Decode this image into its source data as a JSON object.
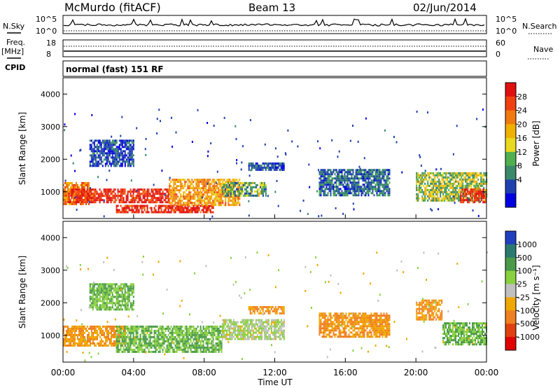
{
  "header": {
    "station": "McMurdo (fitACF)",
    "beam": "Beam 13",
    "date": "02/Jun/2014"
  },
  "top_panels": {
    "nsky_label": "N.Sky",
    "nsky_ticks": [
      "10^5",
      "10^0"
    ],
    "nsearch_label": "N.Search",
    "nsearch_ticks": [
      "10^5",
      "10^0"
    ],
    "freq_label": "Freq.",
    "freq_unit": "[MHz]",
    "freq_ticks": [
      "18",
      "8"
    ],
    "nave_label": "Nave",
    "nave_ticks": [
      "60",
      "0"
    ],
    "cpid_label": "CPID",
    "cpid_text": "normal (fast) 151 RF"
  },
  "axes": {
    "ylabel": "Slant Range [km]",
    "xlabel": "Time UT",
    "y_ticks": [
      "1000",
      "2000",
      "3000",
      "4000"
    ],
    "x_ticks": [
      "00:00",
      "04:00",
      "08:00",
      "12:00",
      "16:00",
      "20:00",
      "00:00"
    ]
  },
  "power_colorbar": {
    "label": "Power [dB]",
    "ticks": [
      "28",
      "24",
      "20",
      "16",
      "12",
      "8",
      "4"
    ],
    "colors": [
      "#e01010",
      "#f04010",
      "#f07a10",
      "#f0b000",
      "#e8d820",
      "#50b050",
      "#3a8a6a",
      "#2040b0",
      "#0000e0"
    ]
  },
  "velocity_colorbar": {
    "label": "Velocity [m s⁻¹]",
    "ticks": [
      "1000",
      "500",
      "100",
      "25",
      "-25",
      "-100",
      "-500",
      "-1000"
    ],
    "colors": [
      "#2040c0",
      "#2a7a70",
      "#4a9a4a",
      "#8ad040",
      "#c0c0c0",
      "#f0a800",
      "#f08020",
      "#e04010",
      "#e00000"
    ]
  },
  "chart_data": [
    {
      "type": "heatmap",
      "title": "Power",
      "xlabel": "Time UT",
      "ylabel": "Slant Range [km]",
      "xlim": [
        "00:00",
        "24:00"
      ],
      "ylim": [
        180,
        4500
      ],
      "colorbar": "Power [dB]",
      "regions": [
        {
          "t": [
            0.0,
            1.5
          ],
          "range": [
            600,
            1300
          ],
          "value_db": 22
        },
        {
          "t": [
            0.3,
            6.0
          ],
          "range": [
            650,
            1100
          ],
          "value_db": 28
        },
        {
          "t": [
            3.0,
            8.5
          ],
          "range": [
            400,
            600
          ],
          "value_db": 28
        },
        {
          "t": [
            6.0,
            10.0
          ],
          "range": [
            600,
            1400
          ],
          "value_db": 20
        },
        {
          "t": [
            9.0,
            11.5
          ],
          "range": [
            900,
            1300
          ],
          "value_db": 12
        },
        {
          "t": [
            10.5,
            12.5
          ],
          "range": [
            1650,
            1900
          ],
          "value_db": 6
        },
        {
          "t": [
            1.5,
            4.0
          ],
          "range": [
            1800,
            2600
          ],
          "value_db": 6
        },
        {
          "t": [
            14.5,
            18.5
          ],
          "range": [
            900,
            1700
          ],
          "value_db": 8
        },
        {
          "t": [
            20.0,
            24.0
          ],
          "range": [
            700,
            1600
          ],
          "value_db": 14
        },
        {
          "t": [
            22.5,
            24.0
          ],
          "range": [
            650,
            1100
          ],
          "value_db": 28
        }
      ]
    },
    {
      "type": "heatmap",
      "title": "Velocity",
      "xlabel": "Time UT",
      "ylabel": "Slant Range [km]",
      "xlim": [
        "00:00",
        "24:00"
      ],
      "ylim": [
        180,
        4500
      ],
      "colorbar": "Velocity [m s-1]",
      "regions": [
        {
          "t": [
            0.0,
            3.5
          ],
          "range": [
            700,
            1300
          ],
          "value_ms": -100
        },
        {
          "t": [
            3.0,
            9.0
          ],
          "range": [
            500,
            1300
          ],
          "value_ms": 100
        },
        {
          "t": [
            9.0,
            12.5
          ],
          "range": [
            900,
            1500
          ],
          "value_ms": 25
        },
        {
          "t": [
            10.5,
            12.5
          ],
          "range": [
            1650,
            1900
          ],
          "value_ms": -100
        },
        {
          "t": [
            14.5,
            18.5
          ],
          "range": [
            950,
            1700
          ],
          "value_ms": -100
        },
        {
          "t": [
            20.0,
            21.5
          ],
          "range": [
            1500,
            2100
          ],
          "value_ms": -100
        },
        {
          "t": [
            21.5,
            24.0
          ],
          "range": [
            700,
            1400
          ],
          "value_ms": 100
        },
        {
          "t": [
            1.5,
            4.0
          ],
          "range": [
            1800,
            2600
          ],
          "value_ms": 100
        }
      ]
    }
  ]
}
